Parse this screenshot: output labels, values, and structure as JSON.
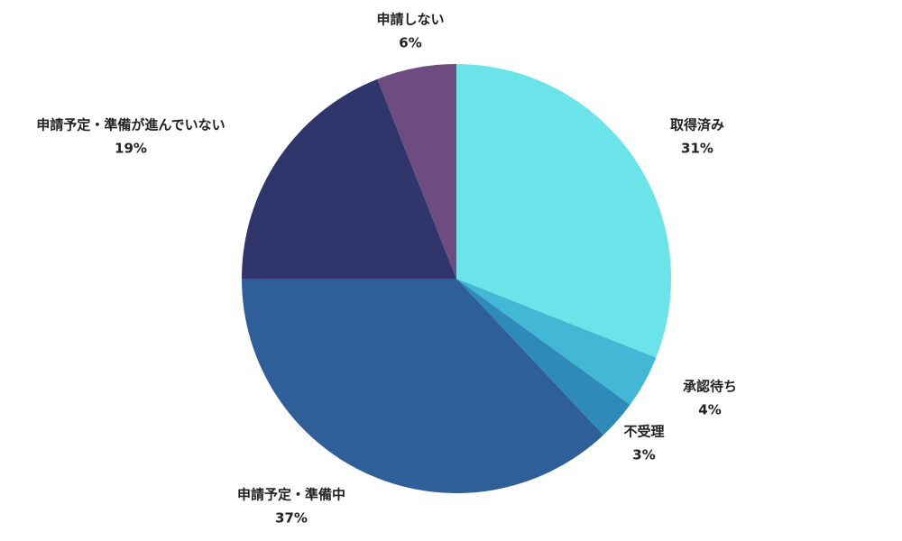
{
  "chart_data": {
    "type": "pie",
    "categories": [
      "取得済み",
      "承認待ち",
      "不受理",
      "申請予定・準備中",
      "申請予定・準備が進んでいない",
      "申請しない"
    ],
    "values": [
      31,
      4,
      3,
      37,
      19,
      6
    ],
    "value_labels": [
      "31%",
      "4%",
      "3%",
      "37%",
      "19%",
      "6%"
    ],
    "colors": [
      "#6ae4e8",
      "#42b8d6",
      "#2e8ab8",
      "#2f5f98",
      "#30356c",
      "#6e4c82"
    ]
  }
}
